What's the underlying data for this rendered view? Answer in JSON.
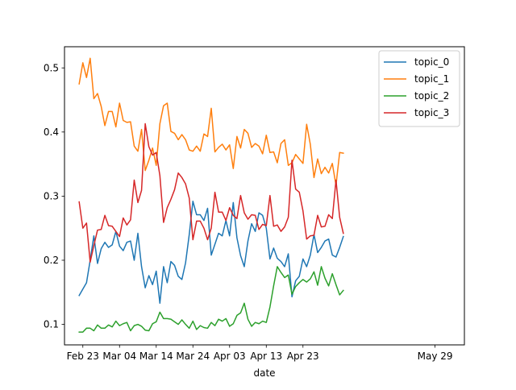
{
  "chart_data": {
    "type": "line",
    "title": "",
    "xlabel": "date",
    "ylabel": "",
    "x_start": "2020-02-22",
    "x_end": "2020-06-01",
    "xlim": [
      "2020-02-18",
      "2020-06-06"
    ],
    "ylim": [
      0.068,
      0.533
    ],
    "x_ticks": [
      {
        "date": "2020-02-23",
        "label": "Feb 23"
      },
      {
        "date": "2020-03-04",
        "label": "Mar 04"
      },
      {
        "date": "2020-03-14",
        "label": "Mar 14"
      },
      {
        "date": "2020-03-24",
        "label": "Mar 24"
      },
      {
        "date": "2020-04-03",
        "label": "Apr 03"
      },
      {
        "date": "2020-04-13",
        "label": "Apr 13"
      },
      {
        "date": "2020-04-23",
        "label": "Apr 23"
      },
      {
        "date": "2020-05-29",
        "label": "May 29"
      }
    ],
    "y_ticks": [
      0.1,
      0.2,
      0.3,
      0.4,
      0.5
    ],
    "y_tick_labels": [
      "0.1",
      "0.2",
      "0.3",
      "0.4",
      "0.5"
    ],
    "grid": false,
    "legend_position": "top-right",
    "series": [
      {
        "name": "topic_0",
        "color": "#1f77b4",
        "values": [
          0.145,
          0.155,
          0.165,
          0.2,
          0.238,
          0.195,
          0.218,
          0.228,
          0.22,
          0.224,
          0.245,
          0.222,
          0.215,
          0.228,
          0.23,
          0.2,
          0.242,
          0.19,
          0.157,
          0.176,
          0.162,
          0.183,
          0.133,
          0.19,
          0.165,
          0.198,
          0.192,
          0.175,
          0.17,
          0.196,
          0.24,
          0.292,
          0.271,
          0.271,
          0.262,
          0.281,
          0.208,
          0.225,
          0.242,
          0.238,
          0.262,
          0.238,
          0.29,
          0.235,
          0.207,
          0.19,
          0.23,
          0.257,
          0.245,
          0.274,
          0.27,
          0.25,
          0.202,
          0.219,
          0.203,
          0.198,
          0.19,
          0.21,
          0.143,
          0.168,
          0.175,
          0.202,
          0.19,
          0.208,
          0.24,
          0.212,
          0.22,
          0.23,
          0.233,
          0.208,
          0.205,
          0.22,
          0.237
        ]
      },
      {
        "name": "topic_1",
        "color": "#ff7f0e",
        "values": [
          0.475,
          0.508,
          0.485,
          0.515,
          0.452,
          0.46,
          0.44,
          0.41,
          0.432,
          0.432,
          0.408,
          0.445,
          0.418,
          0.415,
          0.416,
          0.378,
          0.37,
          0.404,
          0.34,
          0.356,
          0.375,
          0.348,
          0.413,
          0.441,
          0.445,
          0.401,
          0.398,
          0.388,
          0.396,
          0.388,
          0.372,
          0.37,
          0.378,
          0.37,
          0.397,
          0.393,
          0.437,
          0.369,
          0.376,
          0.381,
          0.372,
          0.38,
          0.343,
          0.393,
          0.375,
          0.404,
          0.398,
          0.376,
          0.382,
          0.378,
          0.366,
          0.395,
          0.368,
          0.369,
          0.352,
          0.382,
          0.388,
          0.348,
          0.352,
          0.365,
          0.358,
          0.351,
          0.412,
          0.381,
          0.329,
          0.358,
          0.335,
          0.345,
          0.336,
          0.351,
          0.317,
          0.368,
          0.367
        ]
      },
      {
        "name": "topic_2",
        "color": "#2ca02c",
        "values": [
          0.088,
          0.088,
          0.094,
          0.094,
          0.09,
          0.099,
          0.094,
          0.094,
          0.099,
          0.096,
          0.105,
          0.098,
          0.101,
          0.103,
          0.09,
          0.098,
          0.1,
          0.097,
          0.091,
          0.09,
          0.101,
          0.104,
          0.119,
          0.109,
          0.109,
          0.108,
          0.104,
          0.1,
          0.107,
          0.1,
          0.094,
          0.105,
          0.092,
          0.098,
          0.095,
          0.094,
          0.103,
          0.098,
          0.108,
          0.105,
          0.109,
          0.097,
          0.101,
          0.114,
          0.118,
          0.133,
          0.108,
          0.097,
          0.103,
          0.101,
          0.105,
          0.103,
          0.127,
          0.16,
          0.19,
          0.181,
          0.173,
          0.177,
          0.147,
          0.159,
          0.165,
          0.17,
          0.166,
          0.171,
          0.182,
          0.161,
          0.19,
          0.172,
          0.16,
          0.179,
          0.162,
          0.146,
          0.153
        ]
      },
      {
        "name": "topic_3",
        "color": "#d62728",
        "values": [
          0.291,
          0.25,
          0.258,
          0.197,
          0.223,
          0.247,
          0.248,
          0.27,
          0.254,
          0.253,
          0.245,
          0.237,
          0.266,
          0.255,
          0.263,
          0.325,
          0.29,
          0.309,
          0.413,
          0.377,
          0.364,
          0.368,
          0.332,
          0.259,
          0.282,
          0.295,
          0.31,
          0.336,
          0.329,
          0.319,
          0.297,
          0.232,
          0.261,
          0.261,
          0.25,
          0.232,
          0.25,
          0.306,
          0.275,
          0.275,
          0.262,
          0.282,
          0.27,
          0.265,
          0.301,
          0.274,
          0.264,
          0.271,
          0.27,
          0.248,
          0.256,
          0.254,
          0.301,
          0.253,
          0.255,
          0.245,
          0.252,
          0.267,
          0.356,
          0.311,
          0.306,
          0.277,
          0.233,
          0.238,
          0.239,
          0.27,
          0.252,
          0.253,
          0.271,
          0.265,
          0.325,
          0.267,
          0.242
        ]
      }
    ]
  }
}
